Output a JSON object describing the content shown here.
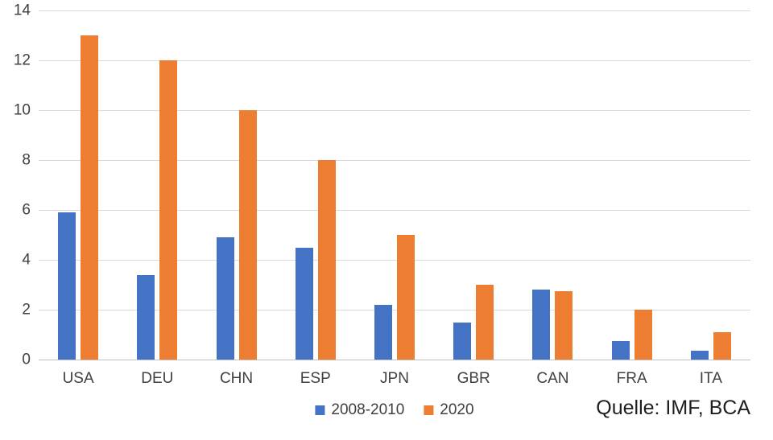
{
  "chart_data": {
    "type": "bar",
    "title": "",
    "categories": [
      "USA",
      "DEU",
      "CHN",
      "ESP",
      "JPN",
      "GBR",
      "CAN",
      "FRA",
      "ITA"
    ],
    "series": [
      {
        "name": "2008-2010",
        "color": "#4472c4",
        "values": [
          5.9,
          3.4,
          4.9,
          4.5,
          2.2,
          1.5,
          2.8,
          0.75,
          0.35
        ]
      },
      {
        "name": "2020",
        "color": "#ed7d31",
        "values": [
          13.0,
          12.0,
          10.0,
          8.0,
          5.0,
          3.0,
          2.75,
          2.0,
          1.1
        ]
      }
    ],
    "xlabel": "",
    "ylabel": "",
    "ylim": [
      0,
      14
    ],
    "yticks": [
      0,
      2,
      4,
      6,
      8,
      10,
      12,
      14
    ],
    "grid": true,
    "gridline_color": "#d9d9d9",
    "axis_line_color": "#bfbfbf",
    "tick_label_color": "#404040",
    "legend_position": "bottom-center",
    "source_note": "Quelle: IMF, BCA"
  }
}
